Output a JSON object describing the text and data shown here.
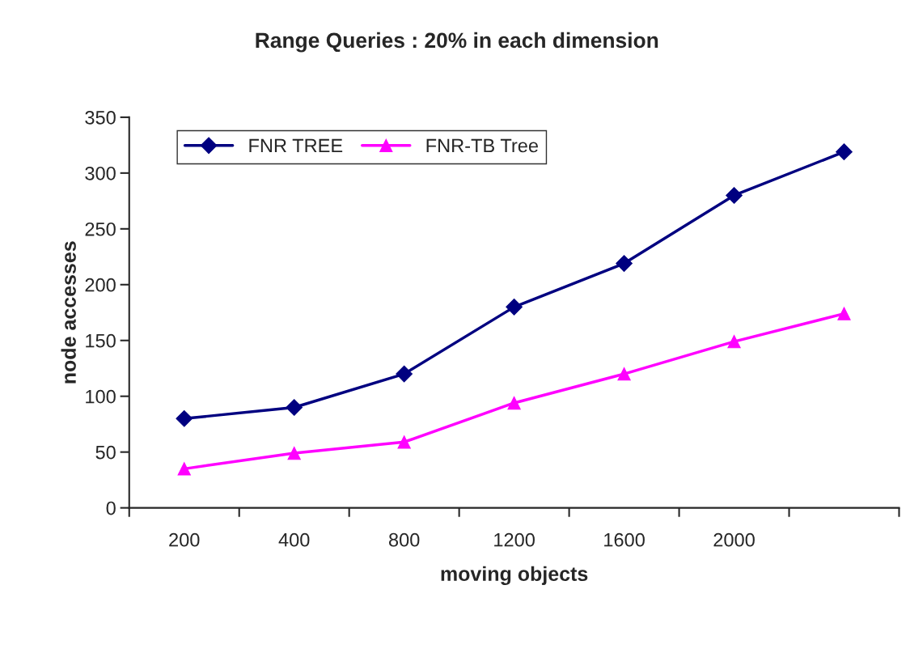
{
  "chart_data": {
    "type": "line",
    "title": "Range Queries : 20% in each dimension",
    "xlabel": "moving objects",
    "ylabel": "node accesses",
    "categories": [
      "200",
      "400",
      "800",
      "1200",
      "1600",
      "2000",
      null
    ],
    "series": [
      {
        "name": "FNR TREE",
        "color": "#000080",
        "marker": "diamond",
        "values": [
          80,
          90,
          120,
          180,
          219,
          280,
          319
        ]
      },
      {
        "name": "FNR-TB Tree",
        "color": "#ff00ff",
        "marker": "triangle",
        "values": [
          35,
          49,
          59,
          94,
          120,
          149,
          174
        ]
      }
    ],
    "ylim": [
      0,
      350
    ],
    "yticks": [
      0,
      50,
      100,
      150,
      200,
      250,
      300,
      350
    ],
    "grid": false,
    "legend": "top left"
  }
}
